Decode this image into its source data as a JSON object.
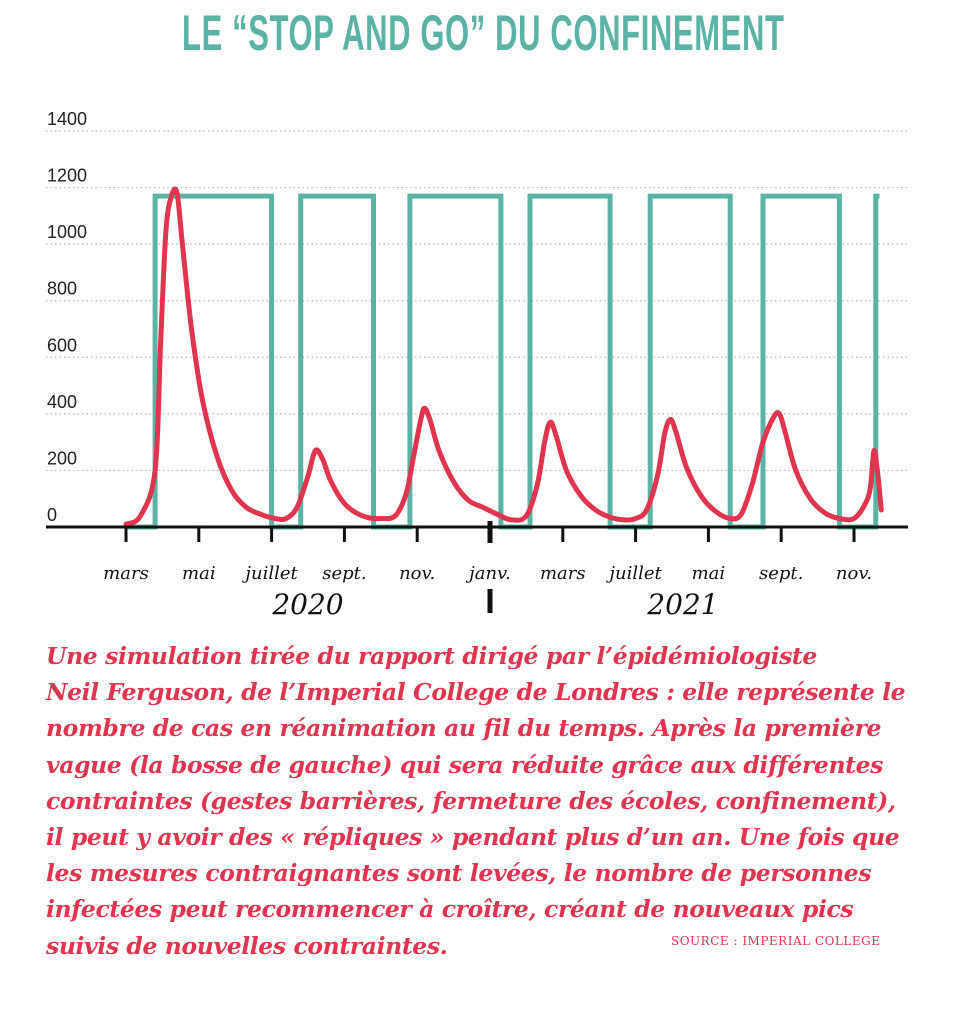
{
  "title": "LE “STOP AND GO” DU CONFINEMENT",
  "caption_lines": [
    "Une simulation tirée  du rapport dirigé par l’épidémiologiste",
    "Neil Ferguson, de l’Imperial College de Londres : elle représente le",
    "nombre de cas en réanimation au fil du temps. Après la première",
    "vague (la bosse de gauche) qui sera réduite grâce aux différentes",
    "contraintes (gestes barrières, fermeture des écoles, confinement),",
    "il peut y avoir des « répliques » pendant plus d’un an. Une fois que",
    "les mesures contraignantes sont levées, le nombre de personnes",
    "infectées peut recommencer à croître, créant de nouveaux pics",
    "suivis de nouvelles contraintes."
  ],
  "source": "SOURCE : IMPERIAL COLLEGE",
  "colors": {
    "title": "#5ab3a5",
    "policy": "#5ab3a5",
    "cases": "#e0344f",
    "text": "#e0344f"
  },
  "chart_data": {
    "type": "line",
    "ylim": [
      0,
      1400
    ],
    "yticks": [
      0,
      200,
      400,
      600,
      800,
      1000,
      1200,
      1400
    ],
    "grid": "dotted-horizontal",
    "x_tick_labels": [
      "mars",
      "mai",
      "juillet",
      "sept.",
      "nov.",
      "janv.",
      "mars",
      "juillet",
      "mai",
      "sept.",
      "nov."
    ],
    "x_tick_months": [
      0,
      2,
      4,
      6,
      8,
      10,
      12,
      14,
      16,
      18,
      20
    ],
    "year_labels": [
      {
        "label": "2020",
        "month": 5.0
      },
      {
        "label": "2021",
        "month": 15.3
      }
    ],
    "year_divider_month": 10,
    "series": [
      {
        "style": "step",
        "x": [
          0,
          0.8,
          0.8,
          4.0,
          4.0,
          4.8,
          4.8,
          6.8,
          6.8,
          7.8,
          7.8,
          10.3,
          10.3,
          11.1,
          11.1,
          13.3,
          13.3,
          14.4,
          14.4,
          16.6,
          16.6,
          17.5,
          17.5,
          19.6,
          19.6,
          20.6,
          20.6,
          20.7
        ],
        "values": [
          0,
          0,
          1170,
          1170,
          0,
          0,
          1170,
          1170,
          0,
          0,
          1170,
          1170,
          0,
          0,
          1170,
          1170,
          0,
          0,
          1170,
          1170,
          0,
          0,
          1170,
          1170,
          0,
          0,
          1170,
          1170
        ]
      },
      {
        "style": "line",
        "x": [
          0,
          0.4,
          0.8,
          0.95,
          1.1,
          1.25,
          1.4,
          1.55,
          1.8,
          2.1,
          2.5,
          2.9,
          3.3,
          3.7,
          4.1,
          4.4,
          4.7,
          5.0,
          5.2,
          5.4,
          5.6,
          5.9,
          6.2,
          6.6,
          7.0,
          7.4,
          7.7,
          7.9,
          8.1,
          8.2,
          8.35,
          8.6,
          9.0,
          9.4,
          9.8,
          10.2,
          10.6,
          11.0,
          11.3,
          11.5,
          11.65,
          11.8,
          12.1,
          12.5,
          12.9,
          13.3,
          13.7,
          14.0,
          14.3,
          14.6,
          14.8,
          14.95,
          15.1,
          15.4,
          15.8,
          16.2,
          16.6,
          16.9,
          17.2,
          17.5,
          17.8,
          17.95,
          18.1,
          18.4,
          18.8,
          19.2,
          19.6,
          20.0,
          20.3,
          20.45,
          20.55,
          20.65,
          20.75
        ],
        "values": [
          10,
          40,
          200,
          650,
          1050,
          1170,
          1180,
          1000,
          700,
          450,
          250,
          130,
          70,
          45,
          30,
          30,
          70,
          180,
          270,
          240,
          170,
          100,
          60,
          35,
          30,
          40,
          120,
          250,
          380,
          420,
          380,
          270,
          160,
          95,
          70,
          45,
          25,
          40,
          150,
          300,
          370,
          330,
          200,
          110,
          60,
          35,
          25,
          30,
          60,
          180,
          330,
          380,
          340,
          210,
          110,
          55,
          30,
          45,
          150,
          300,
          390,
          400,
          340,
          200,
          100,
          50,
          30,
          30,
          80,
          140,
          270,
          190,
          60
        ]
      }
    ]
  }
}
